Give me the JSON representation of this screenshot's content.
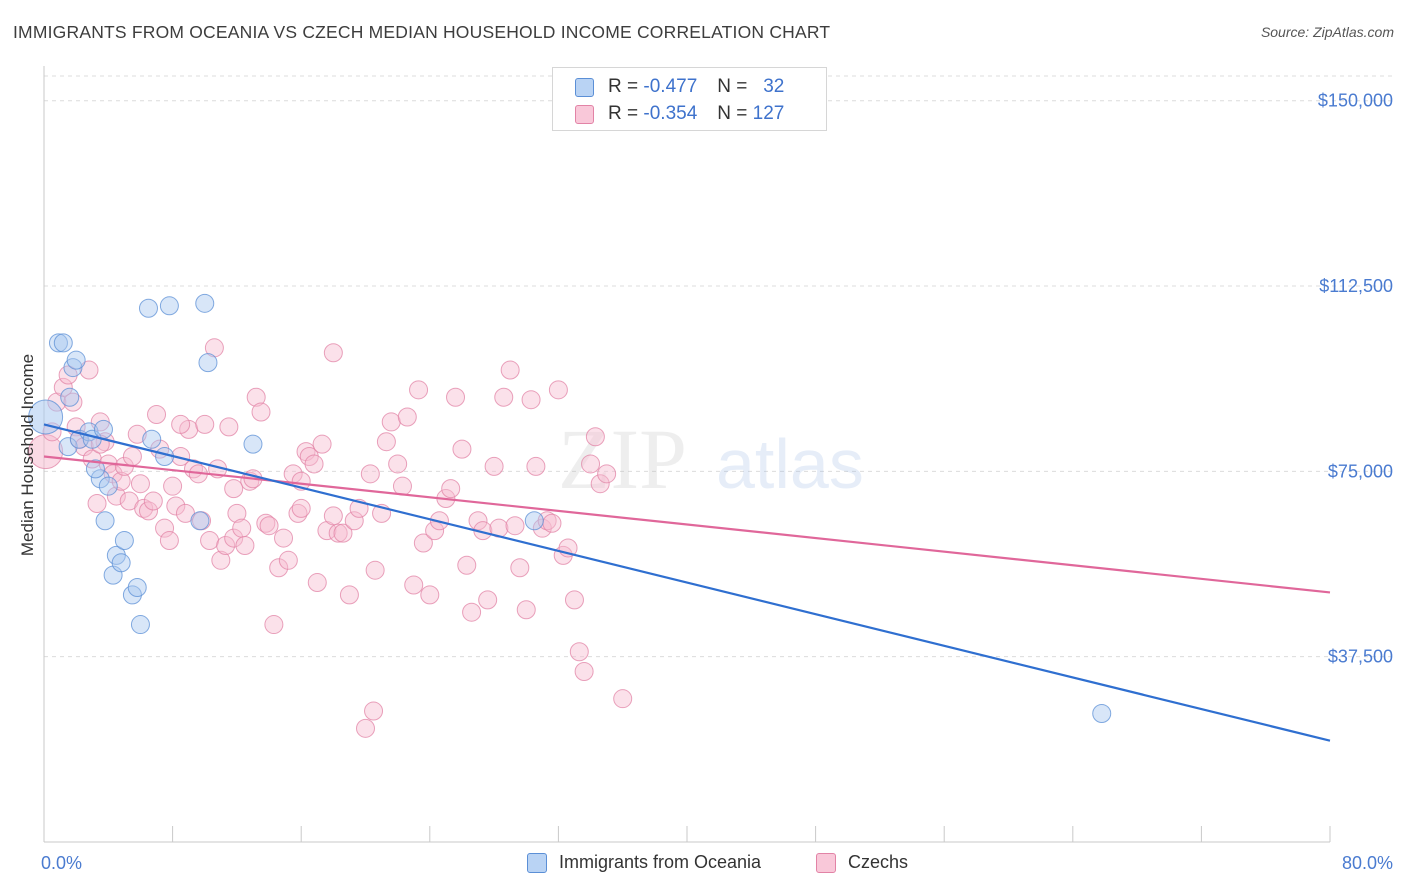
{
  "header": {
    "title": "IMMIGRANTS FROM OCEANIA VS CZECH MEDIAN HOUSEHOLD INCOME CORRELATION CHART",
    "source": "Source: ZipAtlas.com"
  },
  "watermark": {
    "zip": "ZIP",
    "atlas": "atlas"
  },
  "legend": {
    "rows": [
      {
        "r_label": "R =",
        "r_value": "-0.477",
        "n_label": "N =",
        "n_value": "32"
      },
      {
        "r_label": "R =",
        "r_value": "-0.354",
        "n_label": "N =",
        "n_value": "127"
      }
    ]
  },
  "bottom_legend": {
    "series1": "Immigrants from Oceania",
    "series2": "Czechs"
  },
  "colors": {
    "oceania_fill": "#a9c8f0",
    "oceania_stroke": "#5b8fd6",
    "oceania_line": "#2f6fd0",
    "czech_fill": "#f6bcd0",
    "czech_stroke": "#e283a6",
    "czech_line": "#e0679a",
    "tick_text": "#4a7bd0"
  },
  "chart_data": {
    "type": "scatter",
    "title": "IMMIGRANTS FROM OCEANIA VS CZECH MEDIAN HOUSEHOLD INCOME CORRELATION CHART",
    "xlabel": "",
    "ylabel": "Median Household Income",
    "xlim": [
      0,
      80
    ],
    "ylim": [
      0,
      155000
    ],
    "x_tick_labels": [
      "0.0%",
      "80.0%"
    ],
    "y_ticks": [
      {
        "value": 37500,
        "label": "$37,500"
      },
      {
        "value": 75000,
        "label": "$75,000"
      },
      {
        "value": 112500,
        "label": "$112,500"
      },
      {
        "value": 150000,
        "label": "$150,000"
      }
    ],
    "grid": true,
    "legend_position": "top-center",
    "series": [
      {
        "name": "Immigrants from Oceania",
        "R": -0.477,
        "N": 32,
        "trend": [
          [
            0,
            84500
          ],
          [
            80,
            20500
          ]
        ],
        "points": [
          [
            0.1,
            86000
          ],
          [
            0.9,
            101000
          ],
          [
            1.2,
            101000
          ],
          [
            1.5,
            80000
          ],
          [
            1.6,
            90000
          ],
          [
            1.8,
            96000
          ],
          [
            2.0,
            97500
          ],
          [
            2.2,
            81500
          ],
          [
            2.8,
            83000
          ],
          [
            3.0,
            81500
          ],
          [
            3.5,
            73500
          ],
          [
            3.7,
            83500
          ],
          [
            3.2,
            75500
          ],
          [
            3.8,
            65000
          ],
          [
            4.5,
            58000
          ],
          [
            4.3,
            54000
          ],
          [
            5.0,
            61000
          ],
          [
            4.8,
            56500
          ],
          [
            5.5,
            50000
          ],
          [
            5.8,
            51500
          ],
          [
            6.5,
            108000
          ],
          [
            6.0,
            44000
          ],
          [
            6.7,
            81500
          ],
          [
            7.5,
            78000
          ],
          [
            10.0,
            109000
          ],
          [
            13.0,
            80500
          ],
          [
            10.2,
            97000
          ],
          [
            9.7,
            65000
          ],
          [
            7.8,
            108500
          ],
          [
            30.5,
            65000
          ],
          [
            65.8,
            26000
          ],
          [
            4.0,
            72000
          ]
        ]
      },
      {
        "name": "Czechs",
        "R": -0.354,
        "N": 127,
        "trend": [
          [
            0,
            78000
          ],
          [
            80,
            50500
          ]
        ],
        "points": [
          [
            0.1,
            79000
          ],
          [
            0.5,
            83000
          ],
          [
            0.8,
            89000
          ],
          [
            1.2,
            92000
          ],
          [
            1.5,
            94500
          ],
          [
            1.8,
            89000
          ],
          [
            2.0,
            84000
          ],
          [
            2.2,
            81500
          ],
          [
            2.5,
            80000
          ],
          [
            2.8,
            95500
          ],
          [
            3.0,
            77500
          ],
          [
            3.3,
            68500
          ],
          [
            3.5,
            85000
          ],
          [
            3.8,
            81000
          ],
          [
            4.0,
            76500
          ],
          [
            4.3,
            74500
          ],
          [
            4.5,
            70000
          ],
          [
            4.8,
            73000
          ],
          [
            5.0,
            76000
          ],
          [
            5.3,
            69000
          ],
          [
            5.5,
            78000
          ],
          [
            5.8,
            82500
          ],
          [
            6.0,
            72500
          ],
          [
            6.2,
            67500
          ],
          [
            6.5,
            67000
          ],
          [
            6.8,
            69000
          ],
          [
            7.0,
            86500
          ],
          [
            7.2,
            79500
          ],
          [
            7.5,
            63500
          ],
          [
            7.8,
            61000
          ],
          [
            8.0,
            72000
          ],
          [
            8.2,
            68000
          ],
          [
            8.5,
            78000
          ],
          [
            8.8,
            66500
          ],
          [
            9.0,
            83500
          ],
          [
            9.3,
            75500
          ],
          [
            9.6,
            74500
          ],
          [
            9.8,
            65000
          ],
          [
            10.0,
            84500
          ],
          [
            10.3,
            61000
          ],
          [
            10.6,
            100000
          ],
          [
            10.8,
            75500
          ],
          [
            11.0,
            57000
          ],
          [
            11.3,
            60000
          ],
          [
            11.5,
            84000
          ],
          [
            11.8,
            61500
          ],
          [
            12.0,
            66500
          ],
          [
            12.3,
            63500
          ],
          [
            12.5,
            60000
          ],
          [
            12.8,
            73000
          ],
          [
            13.0,
            73500
          ],
          [
            13.2,
            90000
          ],
          [
            13.5,
            87000
          ],
          [
            13.8,
            64500
          ],
          [
            14.0,
            64000
          ],
          [
            14.3,
            44000
          ],
          [
            14.6,
            55500
          ],
          [
            14.9,
            61500
          ],
          [
            15.2,
            57000
          ],
          [
            15.5,
            74500
          ],
          [
            15.8,
            66500
          ],
          [
            16.0,
            73000
          ],
          [
            16.3,
            79000
          ],
          [
            16.5,
            78000
          ],
          [
            16.8,
            76500
          ],
          [
            17.0,
            52500
          ],
          [
            17.3,
            80500
          ],
          [
            17.6,
            63000
          ],
          [
            18.0,
            66000
          ],
          [
            18.3,
            62500
          ],
          [
            18.6,
            62500
          ],
          [
            19.0,
            50000
          ],
          [
            19.3,
            65000
          ],
          [
            19.6,
            67500
          ],
          [
            20.0,
            23000
          ],
          [
            20.3,
            74500
          ],
          [
            20.6,
            55000
          ],
          [
            21.0,
            66500
          ],
          [
            21.3,
            81000
          ],
          [
            21.6,
            85000
          ],
          [
            22.0,
            76500
          ],
          [
            22.3,
            72000
          ],
          [
            22.6,
            86000
          ],
          [
            23.0,
            52000
          ],
          [
            23.3,
            91500
          ],
          [
            23.6,
            60500
          ],
          [
            24.0,
            50000
          ],
          [
            24.3,
            63000
          ],
          [
            24.6,
            65000
          ],
          [
            25.0,
            69500
          ],
          [
            25.3,
            71500
          ],
          [
            25.6,
            90000
          ],
          [
            26.0,
            79500
          ],
          [
            26.3,
            56000
          ],
          [
            26.6,
            46500
          ],
          [
            27.0,
            65000
          ],
          [
            27.3,
            63000
          ],
          [
            27.6,
            49000
          ],
          [
            28.0,
            76000
          ],
          [
            28.3,
            63500
          ],
          [
            28.6,
            90000
          ],
          [
            29.0,
            95500
          ],
          [
            29.3,
            64000
          ],
          [
            29.6,
            55500
          ],
          [
            30.0,
            47000
          ],
          [
            30.3,
            89500
          ],
          [
            30.6,
            76000
          ],
          [
            31.0,
            63500
          ],
          [
            31.3,
            65000
          ],
          [
            31.6,
            64500
          ],
          [
            32.0,
            91500
          ],
          [
            32.3,
            58000
          ],
          [
            32.6,
            59500
          ],
          [
            33.0,
            49000
          ],
          [
            33.3,
            38500
          ],
          [
            33.6,
            34500
          ],
          [
            34.0,
            76500
          ],
          [
            34.3,
            82000
          ],
          [
            34.6,
            72500
          ],
          [
            35.0,
            74500
          ],
          [
            36.0,
            29000
          ],
          [
            20.5,
            26500
          ],
          [
            18.0,
            99000
          ],
          [
            16.0,
            67500
          ],
          [
            8.5,
            84500
          ],
          [
            3.5,
            80500
          ],
          [
            11.8,
            71500
          ]
        ]
      }
    ]
  }
}
